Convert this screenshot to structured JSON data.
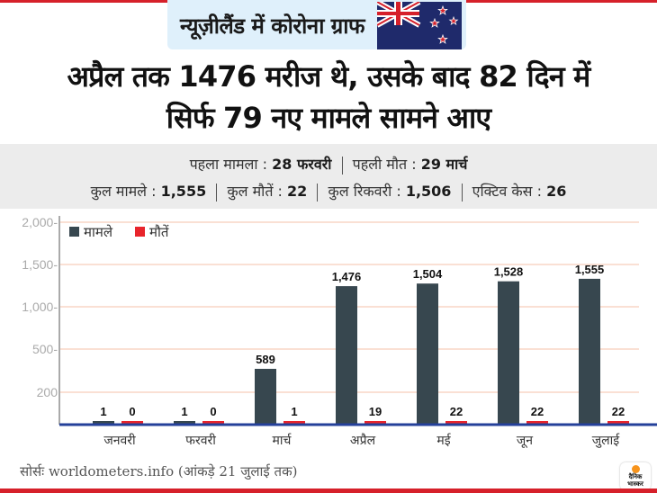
{
  "header": {
    "badge_title": "न्यूज़ीलैंड में कोरोना ग्राफ",
    "flag": "new-zealand-flag",
    "headline_line1": "अप्रैल तक 1476 मरीज थे, उसके बाद 82 दिन में",
    "headline_line2": "सिर्फ 79 नए मामले सामने आए"
  },
  "facts": {
    "first_case_label": "पहला मामला :",
    "first_case_value": "28 फरवरी",
    "first_death_label": "पहली मौत :",
    "first_death_value": "29 मार्च",
    "total_cases_label": "कुल मामले :",
    "total_cases_value": "1,555",
    "total_deaths_label": "कुल मौतें :",
    "total_deaths_value": "22",
    "total_recovered_label": "कुल रिकवरी :",
    "total_recovered_value": "1,506",
    "active_cases_label": "एक्टिव केस :",
    "active_cases_value": "26"
  },
  "colors": {
    "accent_red": "#d6202a",
    "cases_bar": "#37474f",
    "deaths_bar": "#e8242b",
    "gridline": "#f8d5c6",
    "axis_line": "#24409a"
  },
  "chart_data": {
    "type": "bar",
    "title": "न्यूज़ीलैंड में कोरोना ग्राफ",
    "xlabel": "",
    "ylabel": "",
    "categories": [
      "जनवरी",
      "फरवरी",
      "मार्च",
      "अप्रैल",
      "मई",
      "जून",
      "जुलाई"
    ],
    "series": [
      {
        "name": "मामले",
        "color": "#37474f",
        "values": [
          1,
          1,
          589,
          1476,
          1504,
          1528,
          1555
        ],
        "labels": [
          "1",
          "1",
          "589",
          "1,476",
          "1,504",
          "1,528",
          "1,555"
        ]
      },
      {
        "name": "मौतें",
        "color": "#e8242b",
        "values": [
          0,
          0,
          1,
          19,
          22,
          22,
          22
        ],
        "labels": [
          "0",
          "0",
          "1",
          "19",
          "22",
          "22",
          "22"
        ]
      }
    ],
    "yticks": [
      "2,000-",
      "1,500-",
      "1,000-",
      "500-",
      "200"
    ],
    "ylim": [
      0,
      2000
    ],
    "grid": true,
    "legend": "top-left"
  },
  "footer": {
    "source": "सोर्सः worldometers.info  (आंकड़े 21 जुलाई तक)",
    "logo_line1": "दैनिक",
    "logo_line2": "भास्कर"
  }
}
